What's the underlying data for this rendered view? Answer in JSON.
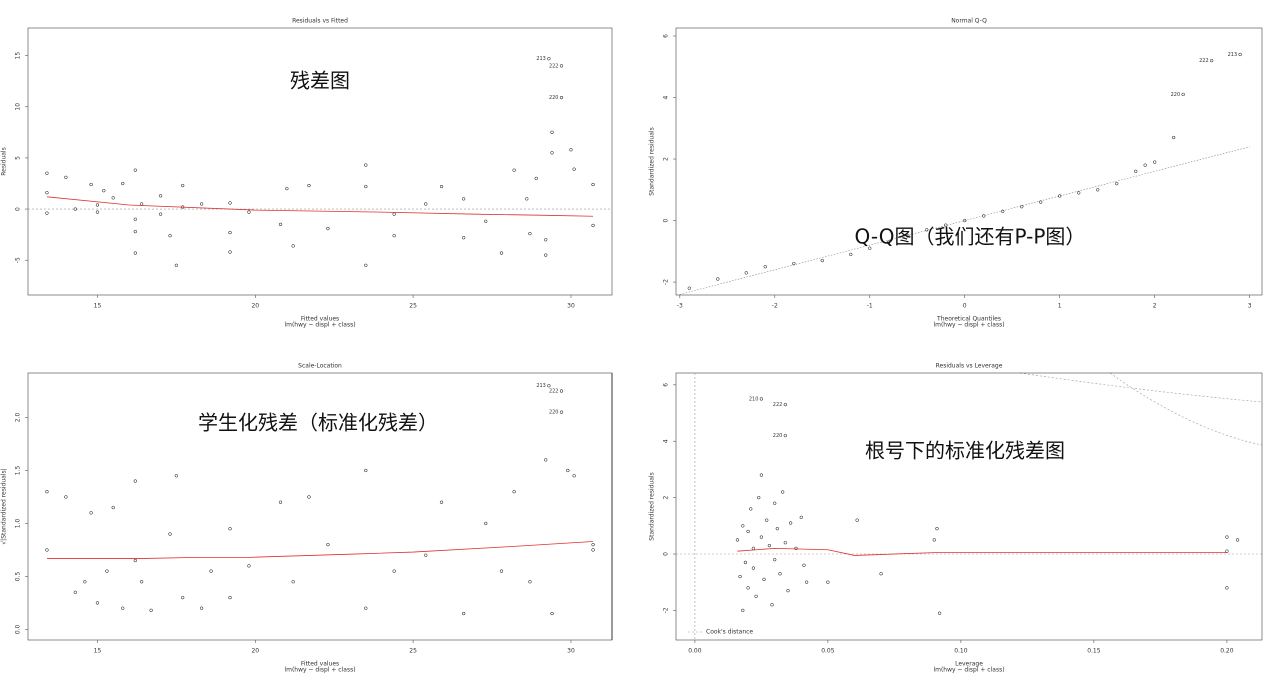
{
  "chart_data": [
    {
      "type": "scatter",
      "title": "Residuals vs Fitted",
      "xlabel": "Fitted values",
      "xsub": "lm(hwy ~ displ + class)",
      "ylabel": "Residuals",
      "annotation": "残差图",
      "xlim": [
        12.8,
        31.3
      ],
      "ylim": [
        -8.4,
        17.7
      ],
      "xticks": [
        15,
        20,
        25,
        30
      ],
      "yticks": [
        -5,
        0,
        5,
        10,
        15
      ],
      "zero_hline": true,
      "zero_vline": false,
      "point_color": "#000000",
      "smooth_color": "#e03030",
      "points": {
        "x": [
          13.4,
          13.4,
          13.4,
          14,
          14.3,
          14.8,
          15,
          15,
          15.2,
          15.5,
          15.8,
          16.2,
          16.2,
          16.2,
          16.2,
          16.4,
          17,
          17,
          17.5,
          17.3,
          17.7,
          17.7,
          18.3,
          19.2,
          19.2,
          19.2,
          19.8,
          20.8,
          21,
          21.2,
          21.7,
          22.3,
          23.5,
          23.5,
          23.5,
          24.4,
          24.4,
          25.4,
          25.9,
          26.6,
          26.6,
          27.3,
          27.8,
          28.2,
          28.6,
          28.7,
          29.2,
          29.4,
          29.4,
          30,
          30.1,
          30.7,
          30.7,
          29.2,
          28.9
        ],
        "y": [
          3.5,
          1.6,
          -0.4,
          3.1,
          0,
          2.4,
          -0.3,
          0.4,
          1.8,
          1.1,
          2.5,
          3.8,
          -1,
          -2.2,
          -4.3,
          0.5,
          1.3,
          -0.5,
          -5.5,
          -2.6,
          2.3,
          0.2,
          0.5,
          0.6,
          -2.3,
          -4.2,
          -0.3,
          -1.5,
          2,
          -3.6,
          2.3,
          -1.9,
          -5.5,
          4.3,
          2.2,
          -0.5,
          -2.6,
          0.5,
          2.2,
          1,
          -2.8,
          -1.2,
          -4.3,
          3.8,
          1,
          -2.4,
          -4.5,
          7.5,
          5.5,
          5.8,
          3.9,
          2.4,
          -1.6,
          -3,
          3
        ]
      },
      "outliers": {
        "x": [
          29.3,
          29.7,
          29.7
        ],
        "y": [
          14.7,
          14,
          10.9
        ],
        "labels": [
          "213",
          "222",
          "220"
        ]
      },
      "smooth": {
        "x": [
          13.4,
          16,
          20,
          24,
          27,
          29,
          30.7
        ],
        "y": [
          1.2,
          0.4,
          -0.1,
          -0.3,
          -0.5,
          -0.6,
          -0.7
        ]
      }
    },
    {
      "type": "scatter",
      "title": "Normal Q-Q",
      "xlabel": "Theoretical Quantiles",
      "xsub": "lm(hwy ~ displ + class)",
      "ylabel": "Standardized residuals",
      "annotation": "Q-Q图（我们还有P-P图）",
      "xlim": [
        -3.04,
        3.13
      ],
      "ylim": [
        -2.42,
        6.26
      ],
      "xticks": [
        -3,
        -2,
        -1,
        0,
        1,
        2,
        3
      ],
      "yticks": [
        -2,
        0,
        2,
        4,
        6
      ],
      "zero_hline": false,
      "zero_vline": false,
      "point_color": "#000000",
      "points": {
        "x": [
          -2.9,
          -2.6,
          -2.3,
          -2.1,
          -1.8,
          -1.5,
          -1.2,
          -1.0,
          -0.8,
          -0.6,
          -0.4,
          -0.2,
          0,
          0.2,
          0.4,
          0.6,
          0.8,
          1.0,
          1.2,
          1.4,
          1.6,
          1.8,
          1.9,
          2.0,
          2.2
        ],
        "y": [
          -2.2,
          -1.9,
          -1.7,
          -1.5,
          -1.4,
          -1.3,
          -1.1,
          -0.9,
          -0.7,
          -0.5,
          -0.3,
          -0.15,
          0,
          0.15,
          0.3,
          0.45,
          0.6,
          0.8,
          0.9,
          1.0,
          1.2,
          1.6,
          1.8,
          1.9,
          2.7
        ]
      },
      "outliers": {
        "x": [
          2.3,
          2.6,
          2.9
        ],
        "y": [
          4.1,
          5.2,
          5.4
        ],
        "labels": [
          "220",
          "222",
          "213"
        ]
      },
      "reference": {
        "x": [
          -3,
          3
        ],
        "y": [
          -2.4,
          2.4
        ]
      }
    },
    {
      "type": "scatter",
      "title": "Scale-Location",
      "xlabel": "Fitted values",
      "xsub": "lm(hwy ~ displ + class)",
      "ylabel": "√|Standardized residuals|",
      "annotation": "学生化残差（标准化残差）",
      "xlim": [
        12.8,
        31.3
      ],
      "ylim": [
        -0.1,
        2.42
      ],
      "xticks": [
        15,
        20,
        25,
        30
      ],
      "yticks": [
        {
          "value": 0,
          "label": "0.0"
        },
        {
          "value": 0.5,
          "label": "0.5"
        },
        {
          "value": 1,
          "label": "1.0"
        },
        {
          "value": 1.5,
          "label": "1.5"
        },
        {
          "value": 2,
          "label": "2.0"
        }
      ],
      "zero_hline": false,
      "zero_vline": false,
      "point_color": "#000000",
      "smooth_color": "#e03030",
      "points": {
        "x": [
          13.4,
          13.4,
          14,
          14.3,
          14.6,
          14.8,
          15,
          15.3,
          15.5,
          15.8,
          16.2,
          16.2,
          16.4,
          16.7,
          17.3,
          17.5,
          17.7,
          18.3,
          18.6,
          19.2,
          19.2,
          19.8,
          20.8,
          21.2,
          21.7,
          22.3,
          23.5,
          23.5,
          24.4,
          25.4,
          25.9,
          26.6,
          27.3,
          27.8,
          28.2,
          28.7,
          29.2,
          29.4,
          29.9,
          30.1,
          30.7,
          30.7
        ],
        "y": [
          1.3,
          0.75,
          1.25,
          0.35,
          0.45,
          1.1,
          0.25,
          0.55,
          1.15,
          0.2,
          1.4,
          0.65,
          0.45,
          0.18,
          0.9,
          1.45,
          0.3,
          0.2,
          0.55,
          0.95,
          0.3,
          0.6,
          1.2,
          0.45,
          1.25,
          0.8,
          1.5,
          0.2,
          0.55,
          0.7,
          1.2,
          0.15,
          1.0,
          0.55,
          1.3,
          0.45,
          1.6,
          0.15,
          1.5,
          1.45,
          0.75,
          0.8
        ]
      },
      "outliers": {
        "x": [
          29.3,
          29.7,
          29.7
        ],
        "y": [
          2.3,
          2.25,
          2.05
        ],
        "labels": [
          "213",
          "222",
          "220"
        ]
      },
      "smooth": {
        "x": [
          13.4,
          16.5,
          18.2,
          19.8,
          23,
          25,
          28,
          30.7
        ],
        "y": [
          0.67,
          0.67,
          0.68,
          0.68,
          0.71,
          0.73,
          0.78,
          0.83
        ]
      }
    },
    {
      "type": "scatter",
      "title": "Residuals vs Leverage",
      "xlabel": "Leverage",
      "xsub": "lm(hwy ~ displ + class)",
      "ylabel": "Standardized residuals",
      "annotation": "根号下的标准化残差图",
      "legend": "Cook's distance",
      "xlim": [
        -0.0071,
        0.2132
      ],
      "ylim": [
        -3.05,
        6.42
      ],
      "xticks": [
        {
          "value": 0,
          "label": "0.00"
        },
        {
          "value": 0.05,
          "label": "0.05"
        },
        {
          "value": 0.1,
          "label": "0.10"
        },
        {
          "value": 0.15,
          "label": "0.15"
        },
        {
          "value": 0.2,
          "label": "0.20"
        }
      ],
      "yticks": [
        -2,
        0,
        2,
        4,
        6
      ],
      "zero_hline": true,
      "zero_vline": true,
      "point_color": "#000000",
      "smooth_color": "#e03030",
      "points": {
        "x": [
          0.016,
          0.017,
          0.018,
          0.018,
          0.019,
          0.02,
          0.02,
          0.021,
          0.022,
          0.022,
          0.023,
          0.024,
          0.025,
          0.025,
          0.026,
          0.027,
          0.028,
          0.029,
          0.03,
          0.03,
          0.031,
          0.032,
          0.033,
          0.034,
          0.035,
          0.036,
          0.038,
          0.04,
          0.041,
          0.042,
          0.05,
          0.061,
          0.07,
          0.09,
          0.091,
          0.092,
          0.2,
          0.2,
          0.2,
          0.204
        ],
        "y": [
          0.5,
          -0.8,
          -2,
          1,
          -0.3,
          0.8,
          -1.2,
          1.6,
          0.2,
          -0.5,
          -1.5,
          2,
          2.8,
          0.6,
          -0.9,
          1.2,
          0.3,
          -1.8,
          1.8,
          -0.2,
          0.9,
          -0.7,
          2.2,
          0.4,
          -1.3,
          1.1,
          0.2,
          1.3,
          -0.4,
          -1,
          -1,
          1.2,
          -0.7,
          0.5,
          0.9,
          -2.1,
          0.6,
          0.1,
          -1.2,
          0.5
        ]
      },
      "outliers": {
        "x": [
          0.025,
          0.034,
          0.034
        ],
        "y": [
          5.5,
          5.3,
          4.2
        ],
        "labels": [
          "210",
          "222",
          "220"
        ]
      },
      "smooth": {
        "x": [
          0.016,
          0.03,
          0.05,
          0.06,
          0.09,
          0.2
        ],
        "y": [
          0.1,
          0.2,
          0.15,
          -0.05,
          0.05,
          0.05
        ]
      }
    }
  ]
}
